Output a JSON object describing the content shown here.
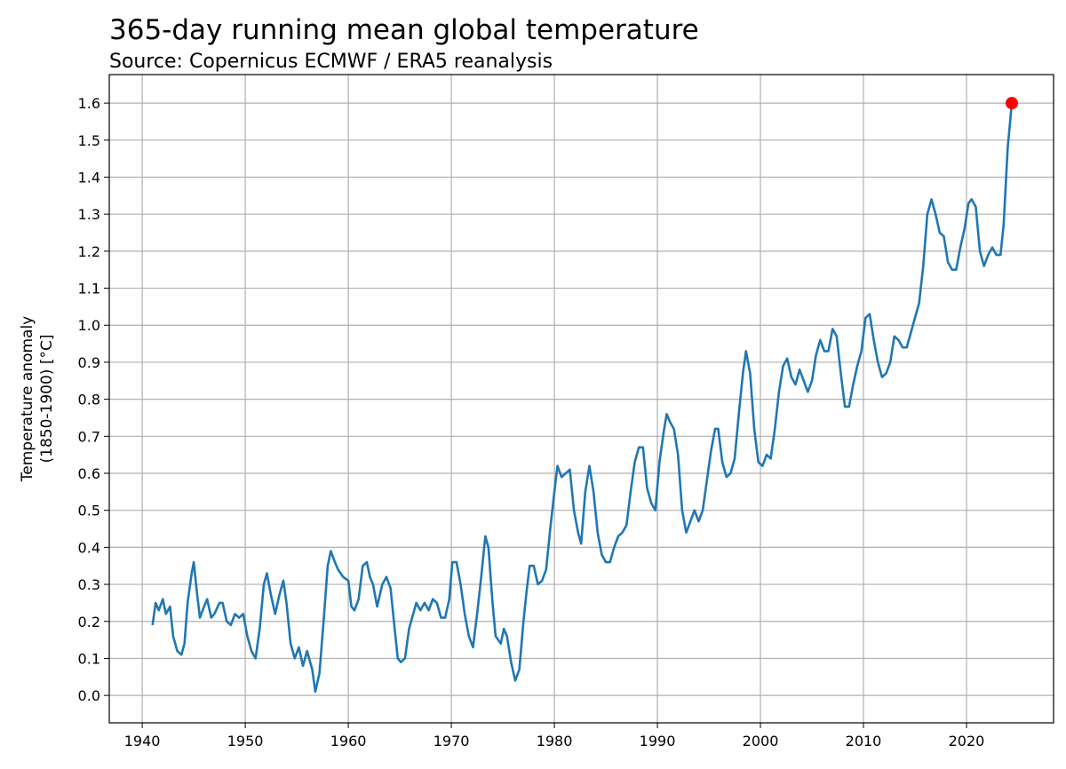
{
  "chart_data": {
    "type": "line",
    "title": "365-day running mean global temperature",
    "subtitle": "Source: Copernicus ECMWF / ERA5 reanalysis",
    "ylabel": [
      "Temperature anomaly",
      "(1850-1900) [°C]"
    ],
    "xlim": [
      1936.8,
      2028.45
    ],
    "ylim": [
      -0.074,
      1.677
    ],
    "xticks": [
      1940,
      1950,
      1960,
      1970,
      1980,
      1990,
      2000,
      2010,
      2020
    ],
    "yticks": [
      {
        "value": 0,
        "label": "0.0"
      },
      0.1,
      0.2,
      0.3,
      0.4,
      0.5,
      0.6,
      0.7,
      0.8,
      0.9,
      {
        "value": 1,
        "label": "1.0"
      },
      1.1,
      1.2,
      1.3,
      1.4,
      1.5,
      1.6
    ],
    "grid": true,
    "series": [
      {
        "color": "#1f77b4",
        "x": [
          1941.0,
          1941.3,
          1941.6,
          1942.0,
          1942.3,
          1942.7,
          1943.0,
          1943.4,
          1943.8,
          1944.1,
          1944.4,
          1944.8,
          1945.0,
          1945.3,
          1945.6,
          1946.0,
          1946.3,
          1946.7,
          1947.0,
          1947.5,
          1947.8,
          1948.2,
          1948.6,
          1949.0,
          1949.4,
          1949.8,
          1950.2,
          1950.6,
          1951.0,
          1951.4,
          1951.8,
          1952.1,
          1952.5,
          1952.9,
          1953.3,
          1953.7,
          1954.0,
          1954.4,
          1954.8,
          1955.2,
          1955.6,
          1956.0,
          1956.5,
          1956.8,
          1957.2,
          1957.6,
          1958.0,
          1958.3,
          1958.7,
          1959.0,
          1959.5,
          1960.0,
          1960.3,
          1960.6,
          1961.0,
          1961.4,
          1961.8,
          1962.1,
          1962.4,
          1962.8,
          1963.3,
          1963.7,
          1964.1,
          1964.5,
          1964.8,
          1965.1,
          1965.5,
          1965.9,
          1966.3,
          1966.6,
          1967.0,
          1967.4,
          1967.8,
          1968.2,
          1968.6,
          1969.0,
          1969.4,
          1969.8,
          1970.1,
          1970.5,
          1970.9,
          1971.3,
          1971.7,
          1972.1,
          1972.5,
          1972.9,
          1973.3,
          1973.6,
          1974.0,
          1974.3,
          1974.8,
          1975.1,
          1975.4,
          1975.8,
          1976.2,
          1976.6,
          1977.0,
          1977.3,
          1977.6,
          1978.0,
          1978.4,
          1978.8,
          1979.2,
          1979.6,
          1980.0,
          1980.3,
          1980.7,
          1981.1,
          1981.5,
          1981.9,
          1982.3,
          1982.6,
          1983.0,
          1983.4,
          1983.8,
          1984.2,
          1984.6,
          1985.0,
          1985.4,
          1985.8,
          1986.2,
          1986.6,
          1987.0,
          1987.4,
          1987.8,
          1988.2,
          1988.6,
          1989.0,
          1989.4,
          1989.8,
          1990.2,
          1990.6,
          1990.9,
          1991.2,
          1991.6,
          1992.0,
          1992.4,
          1992.8,
          1993.2,
          1993.6,
          1994.0,
          1994.4,
          1994.8,
          1995.2,
          1995.6,
          1995.9,
          1996.3,
          1996.7,
          1997.1,
          1997.5,
          1997.9,
          1998.3,
          1998.6,
          1999.0,
          1999.4,
          1999.8,
          2000.2,
          2000.6,
          2001.0,
          2001.4,
          2001.8,
          2002.2,
          2002.6,
          2003.0,
          2003.4,
          2003.8,
          2004.2,
          2004.6,
          2005.0,
          2005.4,
          2005.8,
          2006.2,
          2006.6,
          2007.0,
          2007.4,
          2007.8,
          2008.2,
          2008.6,
          2009.0,
          2009.4,
          2009.8,
          2010.2,
          2010.6,
          2011.0,
          2011.4,
          2011.8,
          2012.2,
          2012.6,
          2013.0,
          2013.4,
          2013.8,
          2014.2,
          2014.6,
          2015.0,
          2015.4,
          2015.8,
          2016.2,
          2016.6,
          2017.0,
          2017.4,
          2017.8,
          2018.2,
          2018.6,
          2019.0,
          2019.4,
          2019.8,
          2020.2,
          2020.5,
          2020.9,
          2021.3,
          2021.7,
          2022.1,
          2022.5,
          2022.9,
          2023.3,
          2023.6,
          2024.0,
          2024.4
        ],
        "values": [
          0.19,
          0.25,
          0.23,
          0.26,
          0.22,
          0.24,
          0.16,
          0.12,
          0.11,
          0.14,
          0.25,
          0.33,
          0.36,
          0.28,
          0.21,
          0.24,
          0.26,
          0.21,
          0.22,
          0.25,
          0.25,
          0.2,
          0.19,
          0.22,
          0.21,
          0.22,
          0.16,
          0.12,
          0.1,
          0.18,
          0.3,
          0.33,
          0.27,
          0.22,
          0.27,
          0.31,
          0.25,
          0.14,
          0.1,
          0.13,
          0.08,
          0.12,
          0.07,
          0.01,
          0.06,
          0.2,
          0.35,
          0.39,
          0.36,
          0.34,
          0.32,
          0.31,
          0.24,
          0.23,
          0.26,
          0.35,
          0.36,
          0.32,
          0.3,
          0.24,
          0.3,
          0.32,
          0.29,
          0.18,
          0.1,
          0.09,
          0.1,
          0.18,
          0.22,
          0.25,
          0.23,
          0.25,
          0.23,
          0.26,
          0.25,
          0.21,
          0.21,
          0.26,
          0.36,
          0.36,
          0.3,
          0.22,
          0.16,
          0.13,
          0.22,
          0.32,
          0.43,
          0.4,
          0.25,
          0.16,
          0.14,
          0.18,
          0.16,
          0.09,
          0.04,
          0.07,
          0.2,
          0.28,
          0.35,
          0.35,
          0.3,
          0.31,
          0.34,
          0.45,
          0.55,
          0.62,
          0.59,
          0.6,
          0.61,
          0.5,
          0.44,
          0.41,
          0.55,
          0.62,
          0.55,
          0.44,
          0.38,
          0.36,
          0.36,
          0.4,
          0.43,
          0.44,
          0.46,
          0.55,
          0.63,
          0.67,
          0.67,
          0.56,
          0.52,
          0.5,
          0.63,
          0.71,
          0.76,
          0.74,
          0.72,
          0.65,
          0.5,
          0.44,
          0.47,
          0.5,
          0.47,
          0.5,
          0.58,
          0.66,
          0.72,
          0.72,
          0.63,
          0.59,
          0.6,
          0.64,
          0.76,
          0.87,
          0.93,
          0.87,
          0.72,
          0.63,
          0.62,
          0.65,
          0.64,
          0.72,
          0.82,
          0.89,
          0.91,
          0.86,
          0.84,
          0.88,
          0.85,
          0.82,
          0.85,
          0.92,
          0.96,
          0.93,
          0.93,
          0.99,
          0.97,
          0.87,
          0.78,
          0.78,
          0.84,
          0.89,
          0.93,
          1.02,
          1.03,
          0.96,
          0.9,
          0.86,
          0.87,
          0.9,
          0.97,
          0.96,
          0.94,
          0.94,
          0.98,
          1.02,
          1.06,
          1.16,
          1.3,
          1.34,
          1.3,
          1.25,
          1.24,
          1.17,
          1.15,
          1.15,
          1.21,
          1.26,
          1.33,
          1.34,
          1.32,
          1.2,
          1.16,
          1.19,
          1.21,
          1.19,
          1.19,
          1.27,
          1.48,
          1.6
        ]
      }
    ],
    "highlight": {
      "color": "#ff0000",
      "x": 2024.4,
      "y": 1.6
    }
  }
}
